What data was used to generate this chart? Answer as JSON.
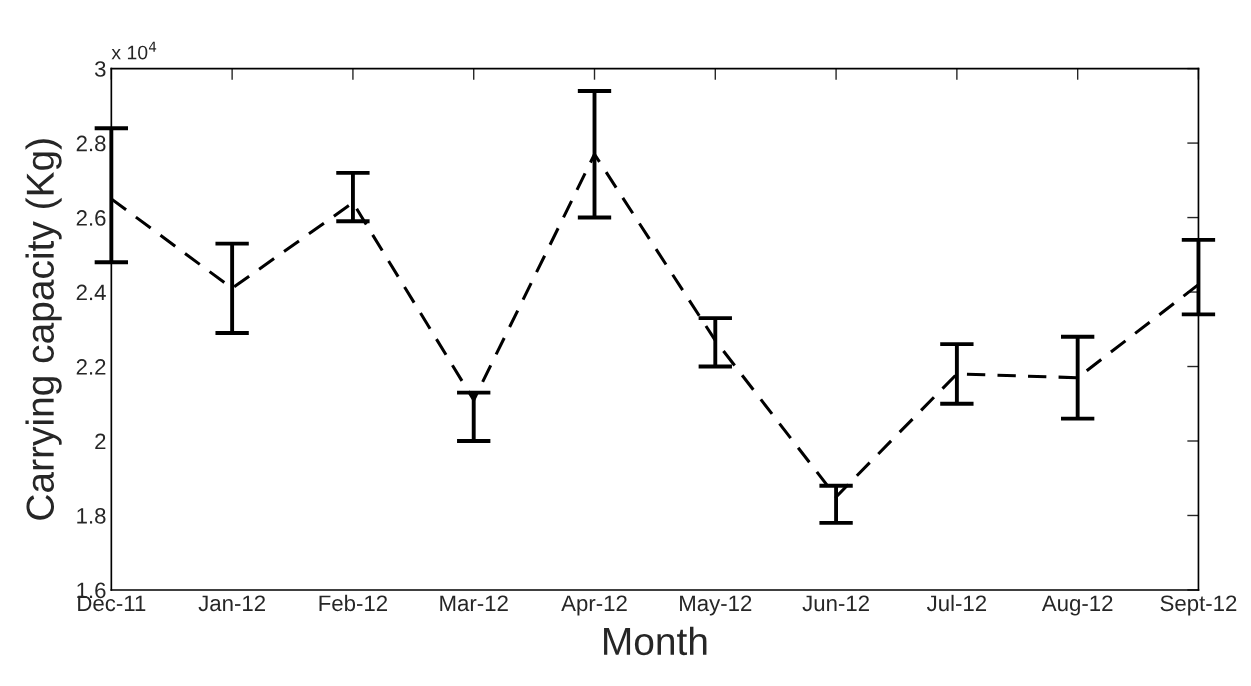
{
  "chart_data": {
    "type": "line",
    "xlabel": "Month",
    "ylabel": "Carrying capacity (Kg)",
    "annotations": [
      "x 10$^{4}$"
    ],
    "categories": [
      "Dec-11",
      "Jan-12",
      "Feb-12",
      "Mar-12",
      "Apr-12",
      "May-12",
      "Jun-12",
      "Jul-12",
      "Aug-12",
      "Sept-12"
    ],
    "series": [
      {
        "color": "#000000",
        "values": [
          2.65,
          2.41,
          2.64,
          2.11,
          2.77,
          2.27,
          1.85,
          2.18,
          2.17,
          2.42
        ],
        "errors": [
          [
            2.48,
            2.84
          ],
          [
            2.29,
            2.53
          ],
          [
            2.59,
            2.72
          ],
          [
            2.0,
            2.13
          ],
          [
            2.6,
            2.94
          ],
          [
            2.2,
            2.33
          ],
          [
            1.78,
            1.88
          ],
          [
            2.1,
            2.26
          ],
          [
            2.06,
            2.28
          ],
          [
            2.34,
            2.54
          ]
        ]
      }
    ],
    "ylim": [
      1.6,
      3
    ],
    "yticks": [
      1.6,
      1.8,
      2,
      2.2,
      2.4,
      2.6,
      2.8,
      3
    ],
    "grid": false,
    "line_style": "dashed",
    "marker": "none"
  }
}
